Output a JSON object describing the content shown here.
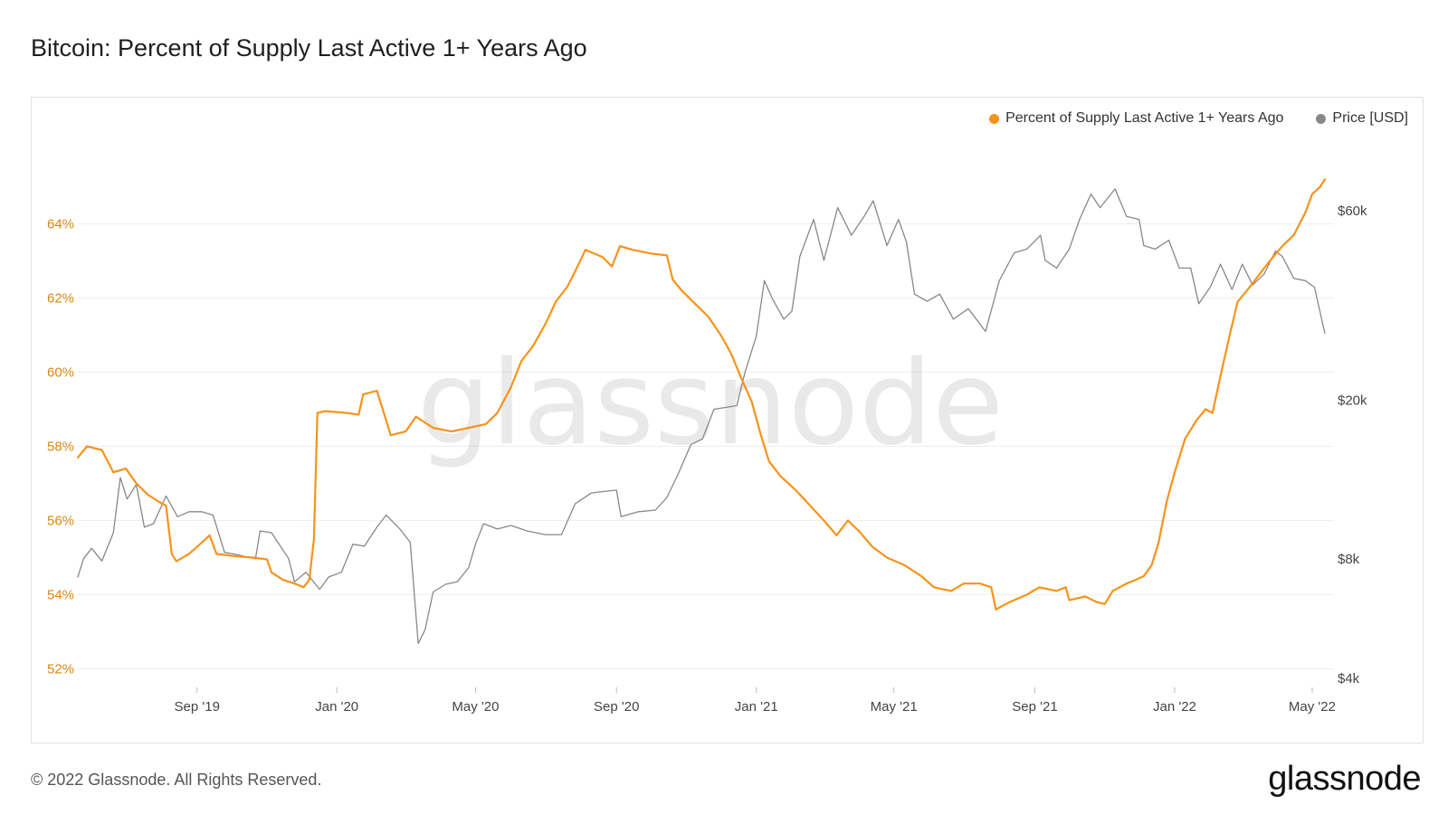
{
  "title": "Bitcoin: Percent of Supply Last Active 1+ Years Ago",
  "footer": {
    "copyright": "© 2022 Glassnode. All Rights Reserved.",
    "logo_text": "glassnode",
    "watermark_text": "glassnode"
  },
  "colors": {
    "supply": "#f7931a",
    "price": "#888888",
    "left_axis": "#d9860f",
    "grid": "#eeeeee"
  },
  "chart_data": {
    "type": "line",
    "title": "Bitcoin: Percent of Supply Last Active 1+ Years Ago",
    "legend_position": "top-right",
    "grid": true,
    "x_range": [
      "2019-05-20",
      "2022-05-20"
    ],
    "x_ticks": [
      {
        "date": "2019-09-01",
        "label": "Sep '19"
      },
      {
        "date": "2020-01-01",
        "label": "Jan '20"
      },
      {
        "date": "2020-05-01",
        "label": "May '20"
      },
      {
        "date": "2020-09-01",
        "label": "Sep '20"
      },
      {
        "date": "2021-01-01",
        "label": "Jan '21"
      },
      {
        "date": "2021-05-01",
        "label": "May '21"
      },
      {
        "date": "2021-09-01",
        "label": "Sep '21"
      },
      {
        "date": "2022-01-01",
        "label": "Jan '22"
      },
      {
        "date": "2022-05-01",
        "label": "May '22"
      }
    ],
    "y_left": {
      "range": [
        51.5,
        66.5
      ],
      "ticks": [
        52,
        54,
        56,
        58,
        60,
        62,
        64
      ],
      "tick_labels": [
        "52%",
        "54%",
        "56%",
        "58%",
        "60%",
        "62%",
        "64%"
      ]
    },
    "y_right": {
      "scale": "log",
      "range": [
        3800,
        95000
      ],
      "ticks": [
        4000,
        8000,
        20000,
        60000
      ],
      "tick_labels": [
        "$4k",
        "$8k",
        "$20k",
        "$60k"
      ]
    },
    "series": [
      {
        "name": "Percent of Supply Last Active 1+ Years Ago",
        "axis": "left",
        "points": [
          [
            "2019-05-20",
            57.7
          ],
          [
            "2019-05-28",
            58.0
          ],
          [
            "2019-06-10",
            57.9
          ],
          [
            "2019-06-20",
            57.3
          ],
          [
            "2019-07-01",
            57.4
          ],
          [
            "2019-07-10",
            57.0
          ],
          [
            "2019-07-20",
            56.7
          ],
          [
            "2019-07-30",
            56.5
          ],
          [
            "2019-08-05",
            56.4
          ],
          [
            "2019-08-10",
            55.1
          ],
          [
            "2019-08-14",
            54.9
          ],
          [
            "2019-08-25",
            55.1
          ],
          [
            "2019-09-05",
            55.4
          ],
          [
            "2019-09-12",
            55.6
          ],
          [
            "2019-09-18",
            55.1
          ],
          [
            "2019-10-01",
            55.05
          ],
          [
            "2019-10-20",
            55.0
          ],
          [
            "2019-11-01",
            54.95
          ],
          [
            "2019-11-05",
            54.6
          ],
          [
            "2019-11-15",
            54.4
          ],
          [
            "2019-11-25",
            54.3
          ],
          [
            "2019-12-03",
            54.2
          ],
          [
            "2019-12-08",
            54.4
          ],
          [
            "2019-12-12",
            55.5
          ],
          [
            "2019-12-15",
            58.9
          ],
          [
            "2019-12-22",
            58.95
          ],
          [
            "2020-01-10",
            58.9
          ],
          [
            "2020-01-20",
            58.85
          ],
          [
            "2020-01-24",
            59.4
          ],
          [
            "2020-02-05",
            59.5
          ],
          [
            "2020-02-12",
            58.8
          ],
          [
            "2020-02-17",
            58.3
          ],
          [
            "2020-03-01",
            58.4
          ],
          [
            "2020-03-10",
            58.8
          ],
          [
            "2020-03-25",
            58.5
          ],
          [
            "2020-04-10",
            58.4
          ],
          [
            "2020-04-25",
            58.5
          ],
          [
            "2020-05-10",
            58.6
          ],
          [
            "2020-05-20",
            58.9
          ],
          [
            "2020-06-01",
            59.6
          ],
          [
            "2020-06-10",
            60.3
          ],
          [
            "2020-06-20",
            60.7
          ],
          [
            "2020-07-01",
            61.3
          ],
          [
            "2020-07-10",
            61.9
          ],
          [
            "2020-07-20",
            62.3
          ],
          [
            "2020-07-25",
            62.6
          ],
          [
            "2020-08-05",
            63.3
          ],
          [
            "2020-08-20",
            63.1
          ],
          [
            "2020-08-28",
            62.85
          ],
          [
            "2020-09-04",
            63.4
          ],
          [
            "2020-09-15",
            63.3
          ],
          [
            "2020-10-01",
            63.2
          ],
          [
            "2020-10-15",
            63.15
          ],
          [
            "2020-10-20",
            62.5
          ],
          [
            "2020-10-28",
            62.2
          ],
          [
            "2020-11-10",
            61.8
          ],
          [
            "2020-11-20",
            61.5
          ],
          [
            "2020-12-01",
            61.0
          ],
          [
            "2020-12-10",
            60.5
          ],
          [
            "2020-12-18",
            59.9
          ],
          [
            "2020-12-28",
            59.2
          ],
          [
            "2021-01-05",
            58.3
          ],
          [
            "2021-01-12",
            57.6
          ],
          [
            "2021-01-22",
            57.2
          ],
          [
            "2021-02-05",
            56.8
          ],
          [
            "2021-02-20",
            56.3
          ],
          [
            "2021-03-01",
            56.0
          ],
          [
            "2021-03-12",
            55.6
          ],
          [
            "2021-03-22",
            56.0
          ],
          [
            "2021-04-01",
            55.7
          ],
          [
            "2021-04-12",
            55.3
          ],
          [
            "2021-04-25",
            55.0
          ],
          [
            "2021-05-10",
            54.8
          ],
          [
            "2021-05-25",
            54.5
          ],
          [
            "2021-06-05",
            54.2
          ],
          [
            "2021-06-20",
            54.1
          ],
          [
            "2021-07-01",
            54.3
          ],
          [
            "2021-07-15",
            54.3
          ],
          [
            "2021-07-25",
            54.2
          ],
          [
            "2021-07-29",
            53.6
          ],
          [
            "2021-08-10",
            53.8
          ],
          [
            "2021-08-25",
            54.0
          ],
          [
            "2021-09-05",
            54.2
          ],
          [
            "2021-09-20",
            54.1
          ],
          [
            "2021-09-28",
            54.2
          ],
          [
            "2021-10-01",
            53.85
          ],
          [
            "2021-10-15",
            53.95
          ],
          [
            "2021-10-25",
            53.8
          ],
          [
            "2021-11-01",
            53.75
          ],
          [
            "2021-11-08",
            54.1
          ],
          [
            "2021-11-20",
            54.3
          ],
          [
            "2021-11-28",
            54.4
          ],
          [
            "2021-12-05",
            54.5
          ],
          [
            "2021-12-12",
            54.8
          ],
          [
            "2021-12-18",
            55.4
          ],
          [
            "2021-12-25",
            56.5
          ],
          [
            "2022-01-01",
            57.3
          ],
          [
            "2022-01-10",
            58.2
          ],
          [
            "2022-01-20",
            58.7
          ],
          [
            "2022-01-28",
            59.0
          ],
          [
            "2022-02-03",
            58.9
          ],
          [
            "2022-02-10",
            59.9
          ],
          [
            "2022-02-18",
            61.0
          ],
          [
            "2022-02-25",
            61.9
          ],
          [
            "2022-03-05",
            62.2
          ],
          [
            "2022-03-15",
            62.6
          ],
          [
            "2022-03-25",
            63.0
          ],
          [
            "2022-04-05",
            63.4
          ],
          [
            "2022-04-15",
            63.7
          ],
          [
            "2022-04-25",
            64.3
          ],
          [
            "2022-05-01",
            64.8
          ],
          [
            "2022-05-08",
            65.0
          ],
          [
            "2022-05-12",
            65.2
          ]
        ]
      },
      {
        "name": "Price [USD]",
        "axis": "right",
        "points": [
          [
            "2019-05-20",
            7200
          ],
          [
            "2019-05-25",
            8000
          ],
          [
            "2019-06-01",
            8500
          ],
          [
            "2019-06-10",
            7900
          ],
          [
            "2019-06-20",
            9300
          ],
          [
            "2019-06-26",
            12800
          ],
          [
            "2019-07-02",
            11300
          ],
          [
            "2019-07-10",
            12300
          ],
          [
            "2019-07-17",
            9600
          ],
          [
            "2019-07-25",
            9800
          ],
          [
            "2019-08-05",
            11500
          ],
          [
            "2019-08-15",
            10200
          ],
          [
            "2019-08-25",
            10500
          ],
          [
            "2019-09-05",
            10500
          ],
          [
            "2019-09-15",
            10300
          ],
          [
            "2019-09-25",
            8300
          ],
          [
            "2019-10-05",
            8200
          ],
          [
            "2019-10-22",
            8000
          ],
          [
            "2019-10-26",
            9400
          ],
          [
            "2019-11-05",
            9300
          ],
          [
            "2019-11-20",
            8000
          ],
          [
            "2019-11-25",
            7000
          ],
          [
            "2019-12-05",
            7400
          ],
          [
            "2019-12-17",
            6700
          ],
          [
            "2019-12-25",
            7200
          ],
          [
            "2020-01-05",
            7400
          ],
          [
            "2020-01-15",
            8700
          ],
          [
            "2020-01-25",
            8600
          ],
          [
            "2020-02-05",
            9600
          ],
          [
            "2020-02-13",
            10300
          ],
          [
            "2020-02-25",
            9500
          ],
          [
            "2020-03-05",
            8800
          ],
          [
            "2020-03-12",
            4900
          ],
          [
            "2020-03-18",
            5300
          ],
          [
            "2020-03-25",
            6600
          ],
          [
            "2020-04-05",
            6900
          ],
          [
            "2020-04-15",
            7000
          ],
          [
            "2020-04-25",
            7600
          ],
          [
            "2020-05-01",
            8700
          ],
          [
            "2020-05-08",
            9800
          ],
          [
            "2020-05-20",
            9500
          ],
          [
            "2020-06-01",
            9700
          ],
          [
            "2020-06-15",
            9400
          ],
          [
            "2020-07-01",
            9200
          ],
          [
            "2020-07-15",
            9200
          ],
          [
            "2020-07-27",
            11000
          ],
          [
            "2020-08-10",
            11700
          ],
          [
            "2020-08-20",
            11800
          ],
          [
            "2020-09-01",
            11900
          ],
          [
            "2020-09-05",
            10200
          ],
          [
            "2020-09-20",
            10500
          ],
          [
            "2020-10-05",
            10600
          ],
          [
            "2020-10-15",
            11400
          ],
          [
            "2020-10-25",
            13100
          ],
          [
            "2020-11-05",
            15500
          ],
          [
            "2020-11-15",
            16000
          ],
          [
            "2020-11-25",
            19000
          ],
          [
            "2020-12-05",
            19200
          ],
          [
            "2020-12-15",
            19400
          ],
          [
            "2020-12-22",
            23500
          ],
          [
            "2021-01-01",
            29000
          ],
          [
            "2021-01-08",
            40000
          ],
          [
            "2021-01-15",
            36000
          ],
          [
            "2021-01-25",
            32000
          ],
          [
            "2021-02-01",
            33500
          ],
          [
            "2021-02-08",
            46000
          ],
          [
            "2021-02-20",
            57000
          ],
          [
            "2021-03-01",
            45000
          ],
          [
            "2021-03-13",
            61000
          ],
          [
            "2021-03-25",
            52000
          ],
          [
            "2021-04-05",
            58000
          ],
          [
            "2021-04-13",
            63500
          ],
          [
            "2021-04-25",
            49000
          ],
          [
            "2021-05-05",
            57000
          ],
          [
            "2021-05-12",
            50000
          ],
          [
            "2021-05-19",
            37000
          ],
          [
            "2021-05-30",
            35500
          ],
          [
            "2021-06-10",
            37000
          ],
          [
            "2021-06-22",
            32000
          ],
          [
            "2021-07-05",
            34000
          ],
          [
            "2021-07-20",
            29800
          ],
          [
            "2021-08-01",
            40000
          ],
          [
            "2021-08-14",
            47000
          ],
          [
            "2021-08-25",
            48000
          ],
          [
            "2021-09-06",
            52000
          ],
          [
            "2021-09-10",
            45000
          ],
          [
            "2021-09-20",
            43000
          ],
          [
            "2021-10-01",
            48000
          ],
          [
            "2021-10-10",
            57000
          ],
          [
            "2021-10-20",
            66000
          ],
          [
            "2021-10-28",
            61000
          ],
          [
            "2021-11-10",
            68000
          ],
          [
            "2021-11-20",
            58000
          ],
          [
            "2021-12-01",
            57000
          ],
          [
            "2021-12-05",
            49000
          ],
          [
            "2021-12-15",
            48000
          ],
          [
            "2021-12-27",
            50500
          ],
          [
            "2022-01-05",
            43000
          ],
          [
            "2022-01-15",
            43000
          ],
          [
            "2022-01-22",
            35000
          ],
          [
            "2022-02-01",
            38500
          ],
          [
            "2022-02-10",
            44000
          ],
          [
            "2022-02-20",
            38000
          ],
          [
            "2022-03-01",
            44000
          ],
          [
            "2022-03-10",
            39000
          ],
          [
            "2022-03-20",
            41500
          ],
          [
            "2022-03-30",
            47500
          ],
          [
            "2022-04-05",
            46000
          ],
          [
            "2022-04-15",
            40500
          ],
          [
            "2022-04-25",
            40000
          ],
          [
            "2022-05-03",
            38500
          ],
          [
            "2022-05-12",
            29500
          ]
        ]
      }
    ]
  }
}
